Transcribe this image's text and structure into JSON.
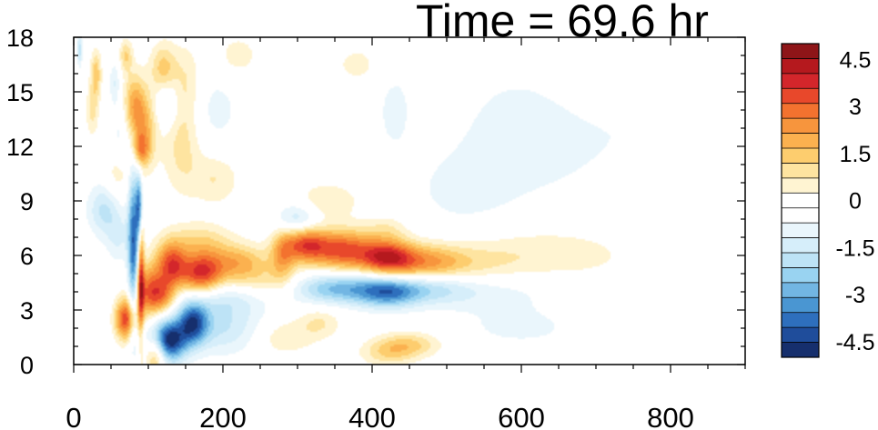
{
  "chart_data": {
    "type": "heatmap",
    "title": "Time = 69.6 hr",
    "xlabel": "",
    "ylabel": "",
    "xlim": [
      0,
      900
    ],
    "ylim": [
      0,
      18
    ],
    "x_ticks": [
      0,
      200,
      400,
      600,
      800
    ],
    "y_ticks": [
      0,
      3,
      6,
      9,
      12,
      15,
      18
    ],
    "x_tick_labels": [
      "0",
      "200",
      "400",
      "600",
      "800"
    ],
    "y_tick_labels": [
      "0",
      "3",
      "6",
      "9",
      "12",
      "15",
      "18"
    ],
    "grid": false,
    "colorbar": {
      "levels": [
        -5.0,
        -4.5,
        -4.0,
        -3.5,
        -3.0,
        -2.5,
        -2.0,
        -1.5,
        -1.0,
        -0.5,
        0,
        0.5,
        1.0,
        1.5,
        2.0,
        2.5,
        3.0,
        3.5,
        4.0,
        4.5,
        5.0
      ],
      "tick_labels": [
        "4.5",
        "3",
        "1.5",
        "0",
        "-1.5",
        "-3",
        "-4.5"
      ],
      "tick_values": [
        4.5,
        3.0,
        1.5,
        0,
        -1.5,
        -3.0,
        -4.5
      ],
      "colors_top_to_bottom": [
        "#8e1518",
        "#b5191e",
        "#d3262b",
        "#e8482b",
        "#f3722f",
        "#f7953d",
        "#fbb14f",
        "#fdcd6e",
        "#fee4a0",
        "#fff4d2",
        "#ffffff",
        "#ffffff",
        "#eaf6fc",
        "#d6eefa",
        "#bde3f6",
        "#99d3f1",
        "#72b6e3",
        "#4a96d2",
        "#2e6fbd",
        "#1f4d9b",
        "#162f6d"
      ]
    },
    "features": [
      {
        "x": 8,
        "y": 17.3,
        "sx": 2.5,
        "sy": 0.6,
        "v": -1.8
      },
      {
        "x": 30,
        "y": 16.0,
        "sx": 5,
        "sy": 0.9,
        "v": 1.8
      },
      {
        "x": 25,
        "y": 14.0,
        "sx": 6,
        "sy": 1.0,
        "v": 1.2
      },
      {
        "x": 70,
        "y": 17.0,
        "sx": 6,
        "sy": 0.6,
        "v": 1.5
      },
      {
        "x": 55,
        "y": 15.5,
        "sx": 5,
        "sy": 0.8,
        "v": -1.0
      },
      {
        "x": 80,
        "y": 14.2,
        "sx": 10,
        "sy": 1.3,
        "v": 2.2
      },
      {
        "x": 95,
        "y": 13.0,
        "sx": 12,
        "sy": 1.5,
        "v": 2.0
      },
      {
        "x": 90,
        "y": 11.8,
        "sx": 8,
        "sy": 0.6,
        "v": 1.8
      },
      {
        "x": 65,
        "y": 12.5,
        "sx": 10,
        "sy": 1.5,
        "v": -0.9
      },
      {
        "x": 120,
        "y": 16.2,
        "sx": 12,
        "sy": 1.0,
        "v": 1.8
      },
      {
        "x": 150,
        "y": 15.5,
        "sx": 15,
        "sy": 1.5,
        "v": 1.0
      },
      {
        "x": 125,
        "y": 14.5,
        "sx": 12,
        "sy": 1.0,
        "v": -1.2
      },
      {
        "x": 145,
        "y": 12.0,
        "sx": 18,
        "sy": 1.8,
        "v": 1.2
      },
      {
        "x": 190,
        "y": 10.2,
        "sx": 22,
        "sy": 1.0,
        "v": 1.0
      },
      {
        "x": 60,
        "y": 10.5,
        "sx": 12,
        "sy": 1.0,
        "v": 1.0
      },
      {
        "x": 40,
        "y": 8.5,
        "sx": 15,
        "sy": 1.0,
        "v": -1.6
      },
      {
        "x": 60,
        "y": 7.0,
        "sx": 12,
        "sy": 1.0,
        "v": -1.0
      },
      {
        "x": 80,
        "y": 6.5,
        "sx": 5,
        "sy": 3.0,
        "v": -3.8
      },
      {
        "x": 88,
        "y": 8.6,
        "sx": 3,
        "sy": 1.3,
        "v": -3.8
      },
      {
        "x": 90,
        "y": 5.0,
        "sx": 3,
        "sy": 2.5,
        "v": 3.5
      },
      {
        "x": 70,
        "y": 2.5,
        "sx": 10,
        "sy": 0.8,
        "v": 4.0
      },
      {
        "x": 110,
        "y": 0.7,
        "sx": 10,
        "sy": 0.8,
        "v": 3.0
      },
      {
        "x": 125,
        "y": 1.3,
        "sx": 18,
        "sy": 0.8,
        "v": -5.0
      },
      {
        "x": 160,
        "y": 2.3,
        "sx": 14,
        "sy": 0.8,
        "v": -3.6
      },
      {
        "x": 200,
        "y": 2.0,
        "sx": 40,
        "sy": 1.0,
        "v": -1.5
      },
      {
        "x": 100,
        "y": 4.0,
        "sx": 12,
        "sy": 1.0,
        "v": 3.0
      },
      {
        "x": 130,
        "y": 5.5,
        "sx": 15,
        "sy": 0.9,
        "v": 3.5
      },
      {
        "x": 170,
        "y": 5.0,
        "sx": 20,
        "sy": 0.8,
        "v": 3.8
      },
      {
        "x": 120,
        "y": 3.8,
        "sx": 12,
        "sy": 0.7,
        "v": 2.5
      },
      {
        "x": 220,
        "y": 5.6,
        "sx": 30,
        "sy": 0.7,
        "v": 2.2
      },
      {
        "x": 170,
        "y": 6.8,
        "sx": 30,
        "sy": 0.7,
        "v": 1.3
      },
      {
        "x": 200,
        "y": 3.7,
        "sx": 40,
        "sy": 0.7,
        "v": -1.2
      },
      {
        "x": 250,
        "y": 4.5,
        "sx": 40,
        "sy": 0.6,
        "v": 1.0
      },
      {
        "x": 280,
        "y": 6.0,
        "sx": 12,
        "sy": 1.0,
        "v": 2.0
      },
      {
        "x": 310,
        "y": 6.6,
        "sx": 20,
        "sy": 0.7,
        "v": 3.2
      },
      {
        "x": 360,
        "y": 6.3,
        "sx": 30,
        "sy": 0.8,
        "v": 3.6
      },
      {
        "x": 420,
        "y": 5.9,
        "sx": 25,
        "sy": 0.7,
        "v": 3.8
      },
      {
        "x": 470,
        "y": 5.6,
        "sx": 35,
        "sy": 0.7,
        "v": 2.2
      },
      {
        "x": 530,
        "y": 5.5,
        "sx": 50,
        "sy": 0.8,
        "v": 1.0
      },
      {
        "x": 610,
        "y": 6.2,
        "sx": 60,
        "sy": 1.0,
        "v": 0.6
      },
      {
        "x": 690,
        "y": 6.0,
        "sx": 60,
        "sy": 1.0,
        "v": 0.45
      },
      {
        "x": 350,
        "y": 4.2,
        "sx": 40,
        "sy": 0.6,
        "v": -2.6
      },
      {
        "x": 420,
        "y": 4.0,
        "sx": 30,
        "sy": 0.6,
        "v": -3.2
      },
      {
        "x": 480,
        "y": 4.2,
        "sx": 40,
        "sy": 0.6,
        "v": -1.6
      },
      {
        "x": 560,
        "y": 4.0,
        "sx": 60,
        "sy": 0.8,
        "v": -0.7
      },
      {
        "x": 300,
        "y": 8.0,
        "sx": 20,
        "sy": 0.6,
        "v": -1.6
      },
      {
        "x": 340,
        "y": 9.0,
        "sx": 30,
        "sy": 0.7,
        "v": 1.0
      },
      {
        "x": 420,
        "y": 7.5,
        "sx": 20,
        "sy": 0.5,
        "v": 0.8
      },
      {
        "x": 280,
        "y": 1.5,
        "sx": 30,
        "sy": 0.7,
        "v": 1.0
      },
      {
        "x": 330,
        "y": 2.3,
        "sx": 20,
        "sy": 0.6,
        "v": 1.0
      },
      {
        "x": 450,
        "y": 1.1,
        "sx": 30,
        "sy": 0.5,
        "v": 1.6
      },
      {
        "x": 420,
        "y": 0.6,
        "sx": 25,
        "sy": 0.5,
        "v": 1.2
      },
      {
        "x": 600,
        "y": 2.0,
        "sx": 70,
        "sy": 0.9,
        "v": -0.6
      },
      {
        "x": 520,
        "y": 9.5,
        "sx": 50,
        "sy": 1.5,
        "v": -0.6
      },
      {
        "x": 620,
        "y": 11.5,
        "sx": 80,
        "sy": 2.0,
        "v": -0.5
      },
      {
        "x": 430,
        "y": 14.0,
        "sx": 15,
        "sy": 1.5,
        "v": -0.8
      },
      {
        "x": 380,
        "y": 16.5,
        "sx": 30,
        "sy": 1.0,
        "v": 0.6
      },
      {
        "x": 590,
        "y": 14.0,
        "sx": 60,
        "sy": 2.5,
        "v": -0.45
      },
      {
        "x": 770,
        "y": 13.5,
        "sx": 60,
        "sy": 2.5,
        "v": -0.4
      },
      {
        "x": 800,
        "y": 8.0,
        "sx": 20,
        "sy": 1.5,
        "v": 0.5
      },
      {
        "x": 220,
        "y": 17.0,
        "sx": 20,
        "sy": 0.8,
        "v": 0.8
      },
      {
        "x": 190,
        "y": 14.0,
        "sx": 25,
        "sy": 1.5,
        "v": -0.7
      }
    ]
  }
}
